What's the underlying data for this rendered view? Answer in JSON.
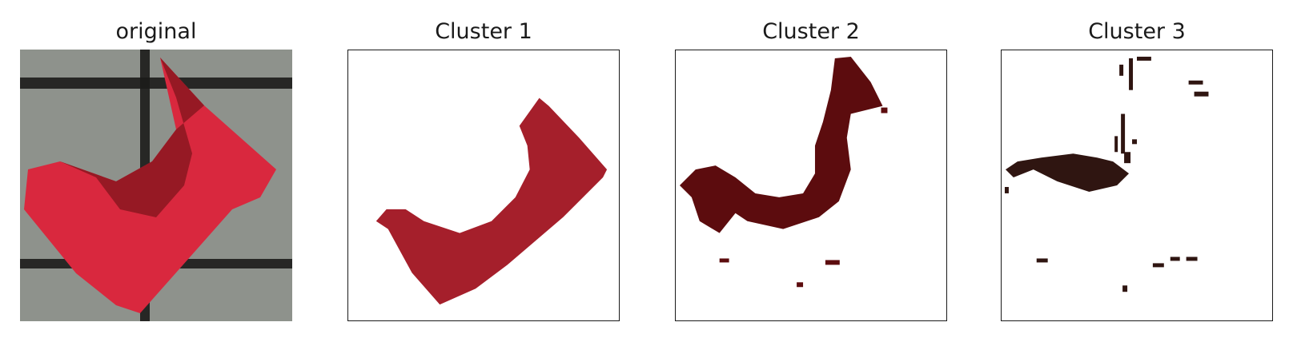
{
  "panels": [
    {
      "title": "original"
    },
    {
      "title": "Cluster 1",
      "color": "#a51f2b"
    },
    {
      "title": "Cluster 2",
      "color": "#5c0c0e"
    },
    {
      "title": "Cluster 3",
      "color": "#2f1511"
    }
  ],
  "colors": {
    "background_gray": "#8e928c",
    "grid_line": "#1c1c1a",
    "object_red": "#d9283e",
    "object_shadow": "#8a1620"
  }
}
